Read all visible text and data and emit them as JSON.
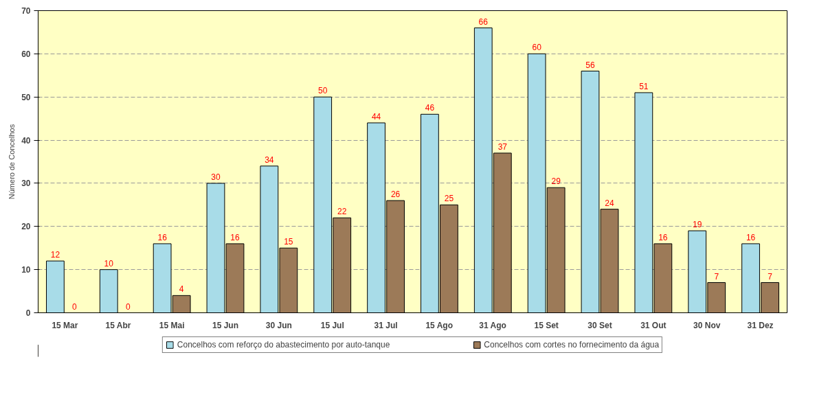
{
  "chart_data": {
    "type": "bar",
    "ylabel": "Número de Concelhos",
    "categories": [
      "15 Mar",
      "15 Abr",
      "15 Mai",
      "15 Jun",
      "30 Jun",
      "15 Jul",
      "31 Jul",
      "15 Ago",
      "31 Ago",
      "15 Set",
      "30 Set",
      "31 Out",
      "30 Nov",
      "31 Dez"
    ],
    "series": [
      {
        "name": "Concelhos com reforço do abastecimento por auto-tanque",
        "color": "#a8dce8",
        "values": [
          12,
          10,
          16,
          30,
          34,
          50,
          44,
          46,
          66,
          60,
          56,
          51,
          19,
          16
        ]
      },
      {
        "name": "Concelhos com cortes no fornecimento da água",
        "color": "#9c7a58",
        "values": [
          0,
          0,
          4,
          16,
          15,
          22,
          26,
          25,
          37,
          29,
          24,
          16,
          7,
          7
        ]
      }
    ],
    "ylim": [
      0,
      70
    ],
    "yticks": [
      0,
      10,
      20,
      30,
      40,
      50,
      60,
      70
    ],
    "grid": "y",
    "legend": "bottom",
    "data_labels": true
  }
}
